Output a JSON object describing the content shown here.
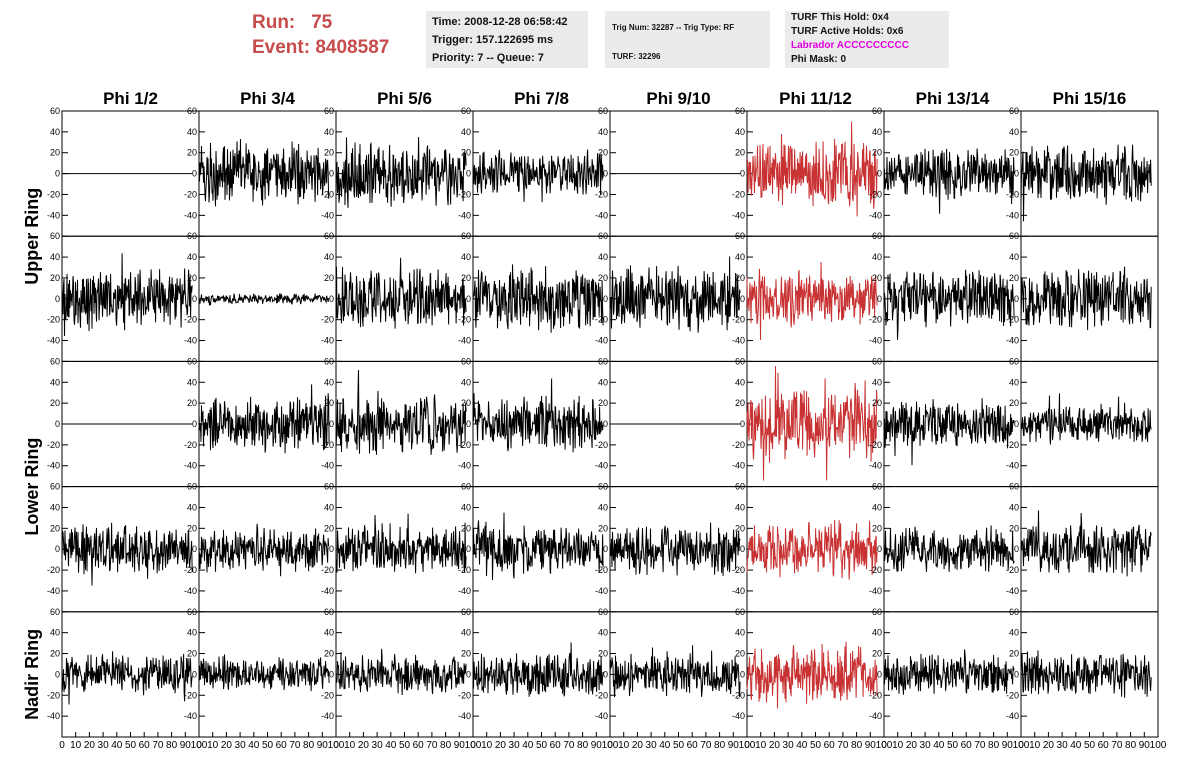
{
  "header": {
    "run_label": "Run:",
    "run_value": "75",
    "event_label": "Event:",
    "event_value": "8408587",
    "time": "Time: 2008-12-28 06:58:42",
    "trigger": "Trigger: 157.122695 ms",
    "priority": "Priority: 7 -- Queue: 7",
    "trig_num": "Trig Num: 32287 -- Trig Type: RF",
    "turf": "TURF: 32296",
    "turf_this_hold": "TURF This Hold: 0x4",
    "turf_active_holds": "TURF Active Holds: 0x6",
    "labrador": "Labrador ACCCCCCCCC",
    "phi_mask": "Phi Mask: 0"
  },
  "colors": {
    "run_text": "#c84b4b",
    "labrador_text": "#e000e0",
    "highlight_trace": "#c83232",
    "normal_trace": "#000000",
    "info_box_bg": "#ebebeb"
  },
  "chart_data": {
    "type": "line",
    "grid": false,
    "columns": [
      "Phi 1/2",
      "Phi 3/4",
      "Phi 5/6",
      "Phi 7/8",
      "Phi 9/10",
      "Phi 11/12",
      "Phi 13/14",
      "Phi 15/16"
    ],
    "ring_labels": [
      {
        "text": "Upper Ring",
        "rows": [
          0,
          1
        ]
      },
      {
        "text": "Lower Ring",
        "rows": [
          2,
          3
        ]
      },
      {
        "text": "Nadir Ring",
        "rows": [
          4
        ]
      }
    ],
    "ylim": [
      -60,
      60
    ],
    "y_ticks": [
      -40,
      -20,
      0,
      20,
      40,
      60
    ],
    "y_tick_labels": [
      "-40",
      "-20",
      "0",
      "20",
      "40",
      "60"
    ],
    "xlim": [
      0,
      100
    ],
    "x_ticks": [
      0,
      10,
      20,
      30,
      40,
      50,
      60,
      70,
      80,
      90,
      100
    ],
    "x_tick_labels": [
      "0",
      "10",
      "20",
      "30",
      "40",
      "50",
      "60",
      "70",
      "80",
      "90",
      "100"
    ],
    "x_label": "",
    "y_label": "",
    "trace_x_range": [
      0,
      95
    ],
    "highlight_column": 5,
    "panels": [
      [
        {
          "amp": 0
        },
        {
          "amp": 22
        },
        {
          "amp": 24
        },
        {
          "amp": 16
        },
        {
          "amp": 0
        },
        {
          "amp": 24
        },
        {
          "amp": 18
        },
        {
          "amp": 20
        }
      ],
      [
        {
          "amp": 22
        },
        {
          "amp": 4
        },
        {
          "amp": 22
        },
        {
          "amp": 22
        },
        {
          "amp": 22
        },
        {
          "amp": 20
        },
        {
          "amp": 20
        },
        {
          "amp": 22
        }
      ],
      [
        {
          "amp": 0
        },
        {
          "amp": 20
        },
        {
          "amp": 22
        },
        {
          "amp": 20
        },
        {
          "amp": 0
        },
        {
          "amp": 26
        },
        {
          "amp": 18
        },
        {
          "amp": 14
        }
      ],
      [
        {
          "amp": 18
        },
        {
          "amp": 16
        },
        {
          "amp": 18
        },
        {
          "amp": 18
        },
        {
          "amp": 18
        },
        {
          "amp": 20
        },
        {
          "amp": 16
        },
        {
          "amp": 18
        }
      ],
      [
        {
          "amp": 14
        },
        {
          "amp": 12
        },
        {
          "amp": 14
        },
        {
          "amp": 16
        },
        {
          "amp": 16
        },
        {
          "amp": 20
        },
        {
          "amp": 14
        },
        {
          "amp": 16
        }
      ]
    ]
  }
}
